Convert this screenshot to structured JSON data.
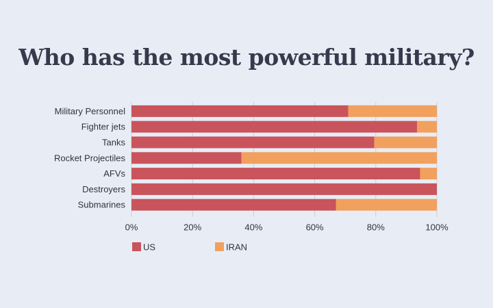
{
  "chart_data": {
    "type": "bar",
    "orientation": "horizontal",
    "stacked": "percent",
    "title": "Who has the most powerful military?",
    "categories": [
      "Military Personnel",
      "Fighter jets",
      "Tanks",
      "Rocket Projectiles",
      "AFVs",
      "Destroyers",
      "Submarines"
    ],
    "series": [
      {
        "name": "US",
        "color": "#c9545c",
        "values": [
          71,
          93.5,
          79.5,
          36,
          94.5,
          100,
          67
        ]
      },
      {
        "name": "IRAN",
        "color": "#f2a05d",
        "values": [
          29,
          6.5,
          20.5,
          64,
          5.5,
          0,
          33
        ]
      }
    ],
    "xlim": [
      0,
      100
    ],
    "xticks": [
      "0%",
      "20%",
      "40%",
      "60%",
      "80%",
      "100%"
    ],
    "grid": true,
    "legend": "bottom-left"
  }
}
